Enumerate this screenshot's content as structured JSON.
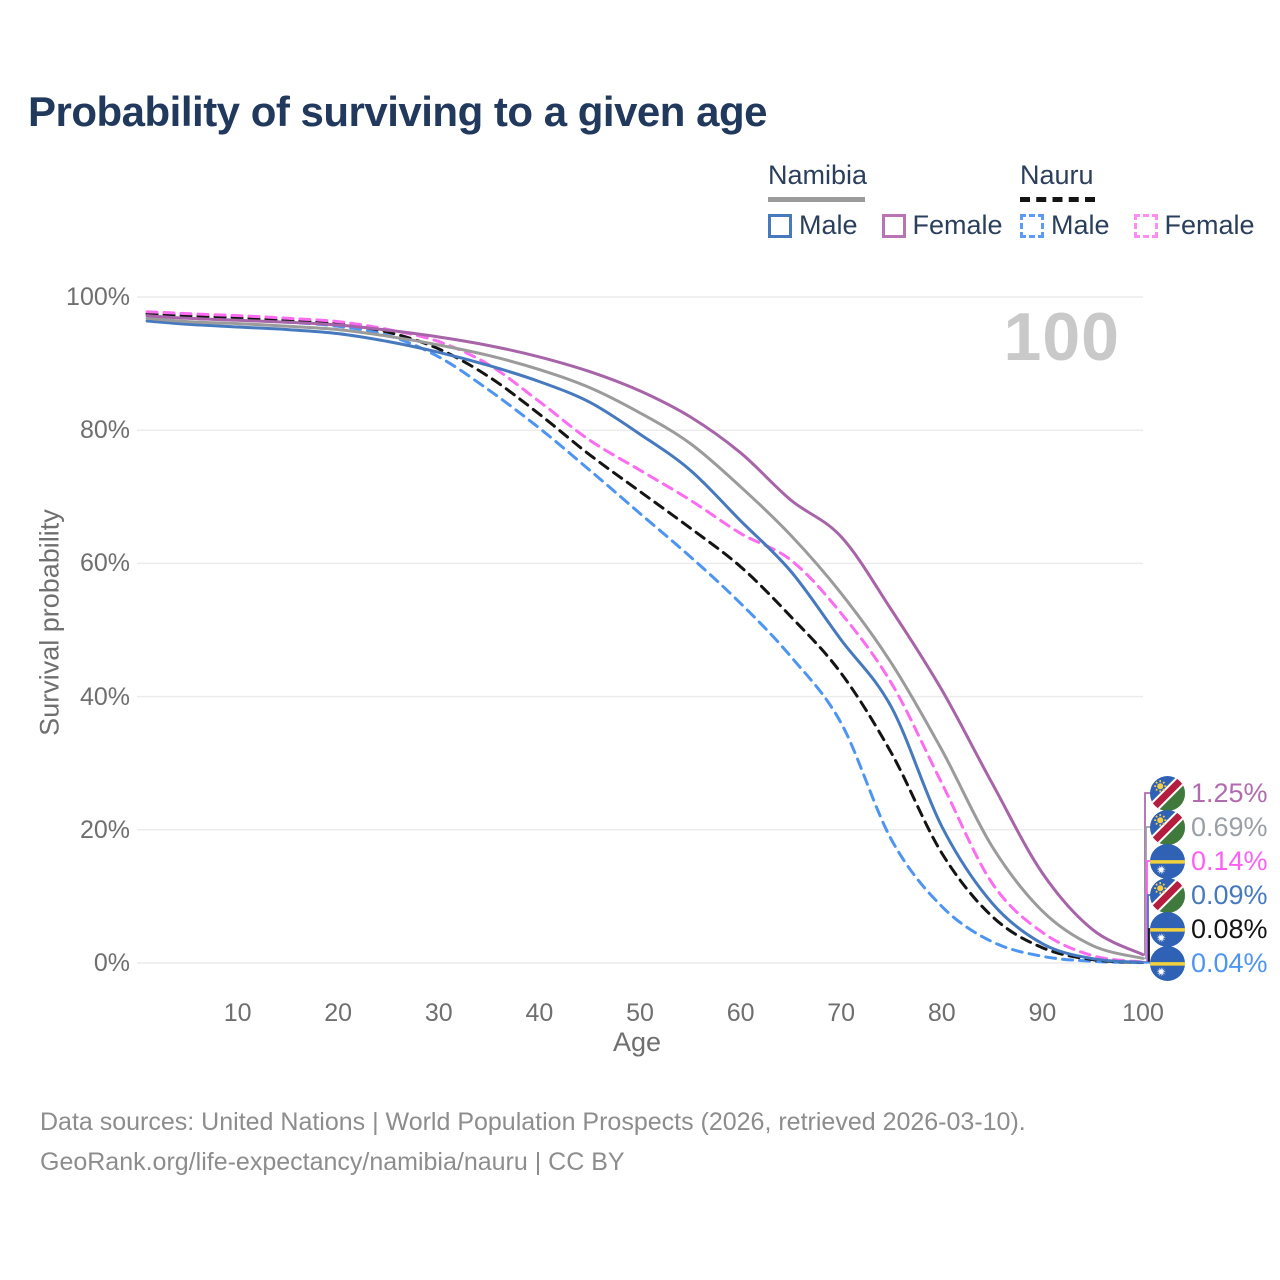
{
  "title": "Probability of surviving to a given age",
  "legend": {
    "groups": [
      {
        "country": "Namibia",
        "line_style": "solid",
        "line_color": "#9b9b9b",
        "items": [
          {
            "label": "Male",
            "color": "#4679bd",
            "style": "solid"
          },
          {
            "label": "Female",
            "color": "#b874b4",
            "style": "solid"
          }
        ]
      },
      {
        "country": "Nauru",
        "line_style": "dashed",
        "line_color": "#141414",
        "items": [
          {
            "label": "Male",
            "color": "#5b9bf5",
            "style": "dashed"
          },
          {
            "label": "Female",
            "color": "#fd8df0",
            "style": "dashed"
          }
        ]
      }
    ]
  },
  "watermark": "100",
  "axes": {
    "xlabel": "Age",
    "ylabel": "Survival probability"
  },
  "chart_data": {
    "type": "line",
    "title": "Probability of surviving to a given age",
    "xlabel": "Age",
    "ylabel": "Survival probability",
    "xlim": [
      0,
      100
    ],
    "ylim": [
      0,
      100
    ],
    "grid": "horizontal",
    "legend_position": "top-right",
    "x_tick_values": [
      10,
      20,
      30,
      40,
      50,
      60,
      70,
      80,
      90,
      100
    ],
    "x_tick_labels": [
      "10",
      "20",
      "30",
      "40",
      "50",
      "60",
      "70",
      "80",
      "90",
      "100"
    ],
    "y_tick_values": [
      0,
      20,
      40,
      60,
      80,
      100
    ],
    "y_tick_labels": [
      "0%",
      "20%",
      "40%",
      "60%",
      "80%",
      "100%"
    ],
    "ages": [
      1,
      5,
      10,
      15,
      20,
      25,
      30,
      35,
      40,
      45,
      50,
      55,
      60,
      65,
      70,
      75,
      80,
      85,
      90,
      95,
      100
    ],
    "series": [
      {
        "name": "Nauru Male",
        "country": "Nauru",
        "sex": "Male",
        "style": "dashed",
        "color": "#4e95f2",
        "end_label": "0.04%",
        "values": [
          97.2,
          96.9,
          96.6,
          96.2,
          95.6,
          94.2,
          91.0,
          86.0,
          80.3,
          74.0,
          67.5,
          61.0,
          54.0,
          46.0,
          36.0,
          18.5,
          8.5,
          3.2,
          1.0,
          0.25,
          0.04
        ]
      },
      {
        "name": "Nauru Total",
        "country": "Nauru",
        "sex": "Both",
        "style": "dashed",
        "color": "#141414",
        "end_label": "0.08%",
        "values": [
          97.5,
          97.2,
          96.9,
          96.5,
          96.0,
          94.7,
          92.2,
          88.0,
          82.4,
          76.3,
          70.8,
          65.3,
          59.5,
          52.0,
          43.5,
          31.5,
          16.5,
          7.0,
          2.3,
          0.5,
          0.08
        ]
      },
      {
        "name": "Nauru Female",
        "country": "Nauru",
        "sex": "Female",
        "style": "dashed",
        "color": "#fb6df0",
        "end_label": "0.14%",
        "values": [
          97.8,
          97.5,
          97.2,
          96.8,
          96.3,
          95.1,
          93.3,
          89.8,
          84.3,
          78.5,
          74.0,
          69.5,
          64.5,
          60.5,
          52.5,
          42.0,
          27.0,
          12.0,
          4.6,
          1.1,
          0.14
        ]
      },
      {
        "name": "Namibia Male",
        "country": "Namibia",
        "sex": "Male",
        "style": "solid",
        "color": "#4679bd",
        "end_label": "0.09%",
        "values": [
          96.4,
          95.9,
          95.5,
          95.1,
          94.5,
          93.3,
          91.7,
          89.7,
          87.3,
          84.2,
          79.4,
          74.0,
          66.4,
          58.8,
          48.5,
          38.4,
          20.5,
          9.0,
          2.9,
          0.65,
          0.09
        ]
      },
      {
        "name": "Namibia Total",
        "country": "Namibia",
        "sex": "Both",
        "style": "solid",
        "color": "#9b9b9b",
        "end_label": "0.69%",
        "values": [
          96.8,
          96.3,
          96.0,
          95.6,
          95.1,
          94.1,
          92.8,
          91.2,
          89.1,
          86.4,
          82.6,
          78.0,
          71.5,
          64.2,
          55.5,
          45.0,
          32.0,
          17.5,
          7.8,
          2.6,
          0.69
        ]
      },
      {
        "name": "Namibia Female",
        "country": "Namibia",
        "sex": "Female",
        "style": "solid",
        "color": "#a864a8",
        "end_label": "1.25%",
        "values": [
          97.2,
          96.8,
          96.5,
          96.2,
          95.8,
          95.0,
          94.0,
          92.7,
          91.0,
          88.8,
          85.9,
          82.0,
          76.6,
          69.5,
          64.0,
          53.0,
          41.0,
          27.0,
          13.5,
          5.0,
          1.25
        ]
      }
    ],
    "end_labels": [
      {
        "flag": "namibia",
        "value": "1.25%",
        "numeric": 1.25,
        "color": "#b16bae"
      },
      {
        "flag": "namibia",
        "value": "0.69%",
        "numeric": 0.69,
        "color": "#9aa0a6"
      },
      {
        "flag": "nauru",
        "value": "0.14%",
        "numeric": 0.14,
        "color": "#ff5ff5"
      },
      {
        "flag": "namibia",
        "value": "0.09%",
        "numeric": 0.09,
        "color": "#4679bd"
      },
      {
        "flag": "nauru",
        "value": "0.08%",
        "numeric": 0.08,
        "color": "#141414"
      },
      {
        "flag": "nauru",
        "value": "0.04%",
        "numeric": 0.04,
        "color": "#4e95f2"
      }
    ]
  },
  "footer": {
    "line1": "Data sources: United Nations | World Population Prospects (2026, retrieved 2026-03-10).",
    "line2": "GeoRank.org/life-expectancy/namibia/nauru | CC BY"
  }
}
